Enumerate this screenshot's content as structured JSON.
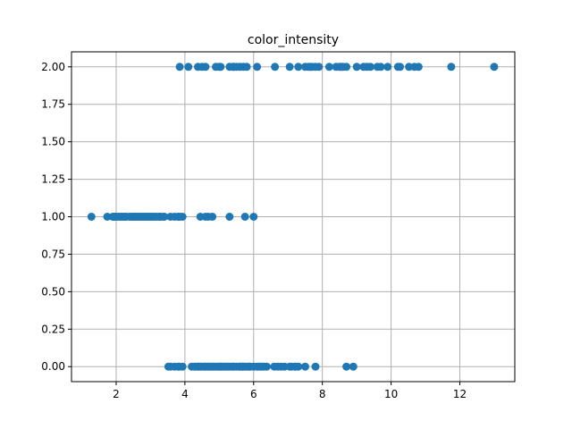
{
  "chart_data": {
    "type": "scatter",
    "title": "color_intensity",
    "xlabel": "",
    "ylabel": "",
    "xlim": [
      0.7,
      13.6
    ],
    "ylim": [
      -0.1,
      2.1
    ],
    "x_ticks": [
      2,
      4,
      6,
      8,
      10,
      12
    ],
    "x_tick_labels": [
      "2",
      "4",
      "6",
      "8",
      "10",
      "12"
    ],
    "y_ticks": [
      0.0,
      0.25,
      0.5,
      0.75,
      1.0,
      1.25,
      1.5,
      1.75,
      2.0
    ],
    "y_tick_labels": [
      "0.00",
      "0.25",
      "0.50",
      "0.75",
      "1.00",
      "1.25",
      "1.50",
      "1.75",
      "2.00"
    ],
    "grid": true,
    "marker_color": "#1f77b4",
    "series": [
      {
        "x": [
          3.52,
          3.58,
          3.7,
          3.8,
          3.84,
          3.93,
          4.2,
          4.28,
          4.32,
          4.38,
          4.4,
          4.45,
          4.5,
          4.56,
          4.6,
          4.62,
          4.68,
          4.7,
          4.75,
          4.8,
          4.85,
          4.9,
          4.95,
          5.0,
          5.04,
          5.05,
          5.1,
          5.15,
          5.2,
          5.24,
          5.3,
          5.36,
          5.4,
          5.43,
          5.5,
          5.58,
          5.6,
          5.64,
          5.68,
          5.7,
          5.75,
          5.8,
          5.85,
          5.88,
          5.9,
          6.0,
          6.1,
          6.13,
          6.2,
          6.25,
          6.3,
          6.38,
          6.6,
          6.7,
          6.8,
          6.9,
          7.05,
          7.1,
          7.2,
          7.22,
          7.3,
          7.5,
          7.8,
          8.7,
          8.9
        ],
        "y": [
          0,
          0,
          0,
          0,
          0,
          0,
          0,
          0,
          0,
          0,
          0,
          0,
          0,
          0,
          0,
          0,
          0,
          0,
          0,
          0,
          0,
          0,
          0,
          0,
          0,
          0,
          0,
          0,
          0,
          0,
          0,
          0,
          0,
          0,
          0,
          0,
          0,
          0,
          0,
          0,
          0,
          0,
          0,
          0,
          0,
          0,
          0,
          0,
          0,
          0,
          0,
          0,
          0,
          0,
          0,
          0,
          0,
          0,
          0,
          0,
          0,
          0,
          0,
          0,
          0
        ]
      },
      {
        "x": [
          1.28,
          1.74,
          1.9,
          1.95,
          2.0,
          2.06,
          2.12,
          2.15,
          2.2,
          2.25,
          2.3,
          2.4,
          2.45,
          2.5,
          2.55,
          2.57,
          2.6,
          2.65,
          2.7,
          2.76,
          2.8,
          2.85,
          2.9,
          2.95,
          3.0,
          3.05,
          3.1,
          3.17,
          3.25,
          3.27,
          3.3,
          3.38,
          3.4,
          3.58,
          3.7,
          3.8,
          3.85,
          3.93,
          4.45,
          4.6,
          4.68,
          4.8,
          5.3,
          5.75,
          6.0
        ],
        "y": [
          1,
          1,
          1,
          1,
          1,
          1,
          1,
          1,
          1,
          1,
          1,
          1,
          1,
          1,
          1,
          1,
          1,
          1,
          1,
          1,
          1,
          1,
          1,
          1,
          1,
          1,
          1,
          1,
          1,
          1,
          1,
          1,
          1,
          1,
          1,
          1,
          1,
          1,
          1,
          1,
          1,
          1,
          1,
          1,
          1
        ]
      },
      {
        "x": [
          3.85,
          4.1,
          4.38,
          4.5,
          4.6,
          4.9,
          5.0,
          5.04,
          5.3,
          5.4,
          5.43,
          5.5,
          5.6,
          5.7,
          5.8,
          6.1,
          6.62,
          7.05,
          7.3,
          7.5,
          7.6,
          7.65,
          7.7,
          7.8,
          7.9,
          8.2,
          8.4,
          8.5,
          8.55,
          8.6,
          8.7,
          9.0,
          9.2,
          9.3,
          9.4,
          9.6,
          9.7,
          9.9,
          10.2,
          10.26,
          10.52,
          10.68,
          10.8,
          11.75,
          13.0
        ],
        "y": [
          2,
          2,
          2,
          2,
          2,
          2,
          2,
          2,
          2,
          2,
          2,
          2,
          2,
          2,
          2,
          2,
          2,
          2,
          2,
          2,
          2,
          2,
          2,
          2,
          2,
          2,
          2,
          2,
          2,
          2,
          2,
          2,
          2,
          2,
          2,
          2,
          2,
          2,
          2,
          2,
          2,
          2,
          2,
          2,
          2
        ]
      }
    ]
  }
}
